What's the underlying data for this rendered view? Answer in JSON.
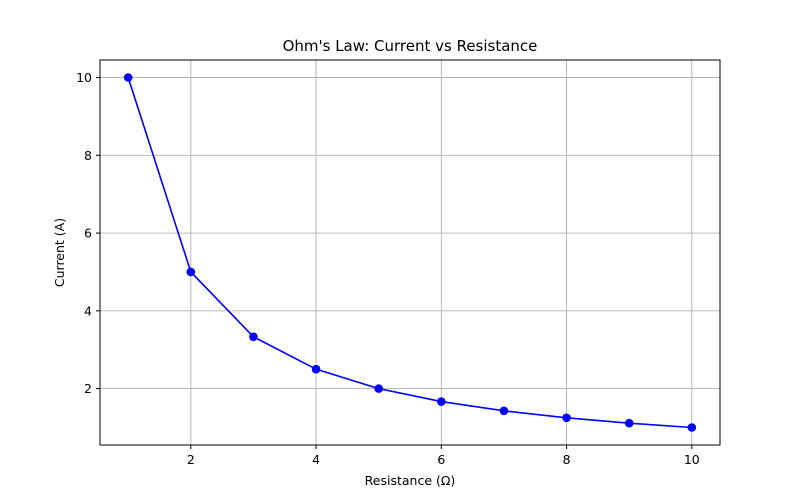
{
  "chart_data": {
    "type": "line",
    "title": "Ohm's Law: Current vs Resistance",
    "xlabel": "Resistance (Ω)",
    "ylabel": "Current (A)",
    "x": [
      1,
      2,
      3,
      4,
      5,
      6,
      7,
      8,
      9,
      10
    ],
    "series": [
      {
        "values": [
          10.0,
          5.0,
          3.333,
          2.5,
          2.0,
          1.667,
          1.429,
          1.25,
          1.111,
          1.0
        ],
        "color": "#0000ff",
        "marker": "circle"
      }
    ],
    "xlim": [
      0.55,
      10.45
    ],
    "ylim": [
      0.55,
      10.45
    ],
    "xticks": [
      2,
      4,
      6,
      8,
      10
    ],
    "yticks": [
      2,
      4,
      6,
      8,
      10
    ],
    "xtick_labels": [
      "2",
      "4",
      "6",
      "8",
      "10"
    ],
    "ytick_labels": [
      "2",
      "4",
      "6",
      "8",
      "10"
    ],
    "grid": true,
    "grid_color": "#b0b0b0",
    "axis_color": "#000000"
  }
}
